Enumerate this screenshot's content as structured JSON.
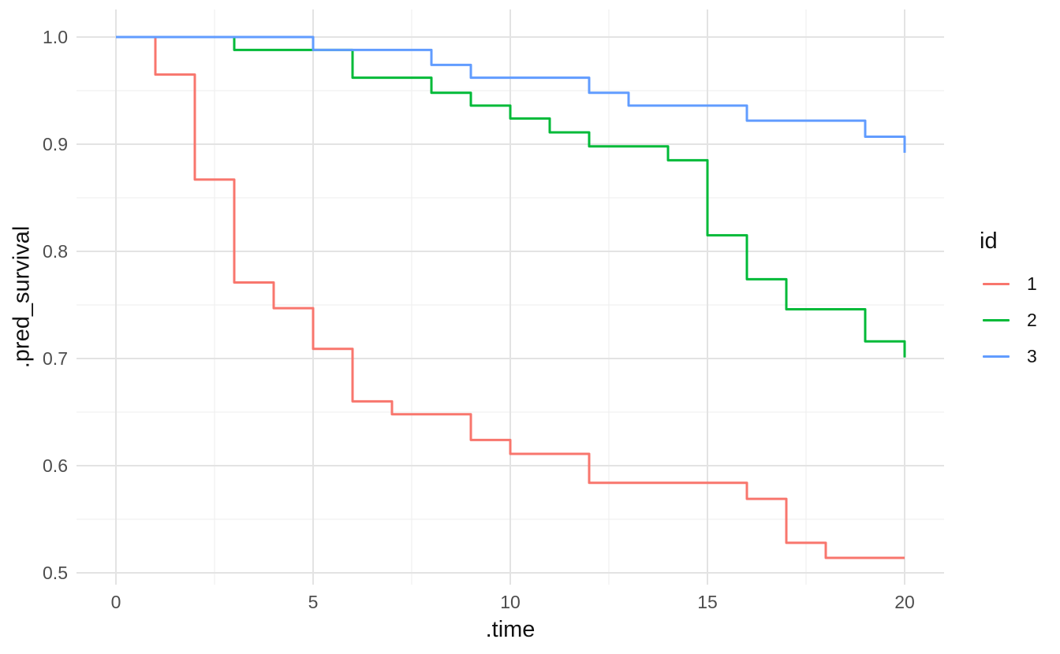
{
  "chart_data": {
    "type": "line",
    "style": "step",
    "title": "",
    "xlabel": ".time",
    "ylabel": ".pred_survival",
    "legend_title": "id",
    "legend_position": "right",
    "grid": "major+minor",
    "background_color": "#FFFFFF",
    "grid_major_color": "#E3E3E3",
    "grid_minor_color": "#F0F0F0",
    "tick_label_color": "#4D4D4D",
    "axis_title_color": "#111111",
    "xlim": [
      0,
      20
    ],
    "ylim": [
      0.5,
      1.0
    ],
    "x_ticks": {
      "values": [
        0,
        5,
        10,
        15,
        20
      ],
      "labels": [
        "0",
        "5",
        "10",
        "15",
        "20"
      ]
    },
    "x_minor": [
      2.5,
      7.5,
      12.5,
      17.5
    ],
    "y_ticks": {
      "values": [
        1.0,
        0.9,
        0.8,
        0.7,
        0.6,
        0.5
      ],
      "labels": [
        "1.0",
        "0.9",
        "0.8",
        "0.7",
        "0.6",
        "0.5"
      ]
    },
    "y_minor": [
      0.95,
      0.85,
      0.75,
      0.65,
      0.55
    ],
    "series": [
      {
        "name": "1",
        "color": "#F8766D",
        "steps": [
          [
            0,
            1.0
          ],
          [
            1,
            0.965
          ],
          [
            2,
            0.867
          ],
          [
            3,
            0.771
          ],
          [
            4,
            0.747
          ],
          [
            5,
            0.709
          ],
          [
            6,
            0.66
          ],
          [
            7,
            0.648
          ],
          [
            9,
            0.624
          ],
          [
            10,
            0.611
          ],
          [
            12,
            0.584
          ],
          [
            16,
            0.569
          ],
          [
            17,
            0.528
          ],
          [
            18,
            0.514
          ],
          [
            20,
            0.514
          ]
        ]
      },
      {
        "name": "2",
        "color": "#00BA38",
        "steps": [
          [
            0,
            1.0
          ],
          [
            3,
            0.988
          ],
          [
            6,
            0.962
          ],
          [
            8,
            0.948
          ],
          [
            9,
            0.936
          ],
          [
            10,
            0.924
          ],
          [
            11,
            0.911
          ],
          [
            12,
            0.898
          ],
          [
            14,
            0.885
          ],
          [
            15,
            0.815
          ],
          [
            16,
            0.774
          ],
          [
            17,
            0.746
          ],
          [
            19,
            0.716
          ],
          [
            20,
            0.701
          ]
        ]
      },
      {
        "name": "3",
        "color": "#619CFF",
        "steps": [
          [
            0,
            1.0
          ],
          [
            5,
            0.988
          ],
          [
            8,
            0.974
          ],
          [
            9,
            0.962
          ],
          [
            12,
            0.948
          ],
          [
            13,
            0.936
          ],
          [
            16,
            0.922
          ],
          [
            19,
            0.907
          ],
          [
            20,
            0.892
          ]
        ]
      }
    ]
  }
}
